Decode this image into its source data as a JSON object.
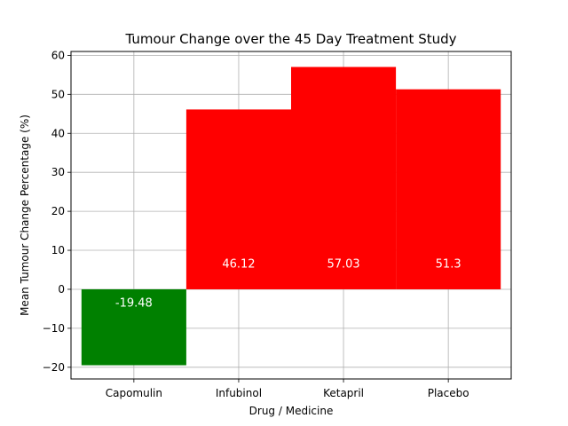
{
  "chart_data": {
    "type": "bar",
    "title": "Tumour Change over the 45 Day Treatment Study",
    "xlabel": "Drug / Medicine",
    "ylabel": "Mean Tumour Change Percentage (%)",
    "categories": [
      "Capomulin",
      "Infubinol",
      "Ketapril",
      "Placebo"
    ],
    "values": [
      -19.48,
      46.12,
      57.03,
      51.3
    ],
    "value_labels": [
      "-19.48",
      "46.12",
      "57.03",
      "51.3"
    ],
    "bar_colors": [
      "#008000",
      "#ff0000",
      "#ff0000",
      "#ff0000"
    ],
    "ylim": [
      -23,
      61
    ],
    "yticks": [
      -20,
      -10,
      0,
      10,
      20,
      30,
      40,
      50,
      60
    ],
    "ytick_labels": [
      "−20",
      "−10",
      "0",
      "10",
      "20",
      "30",
      "40",
      "50",
      "60"
    ],
    "grid": true
  }
}
